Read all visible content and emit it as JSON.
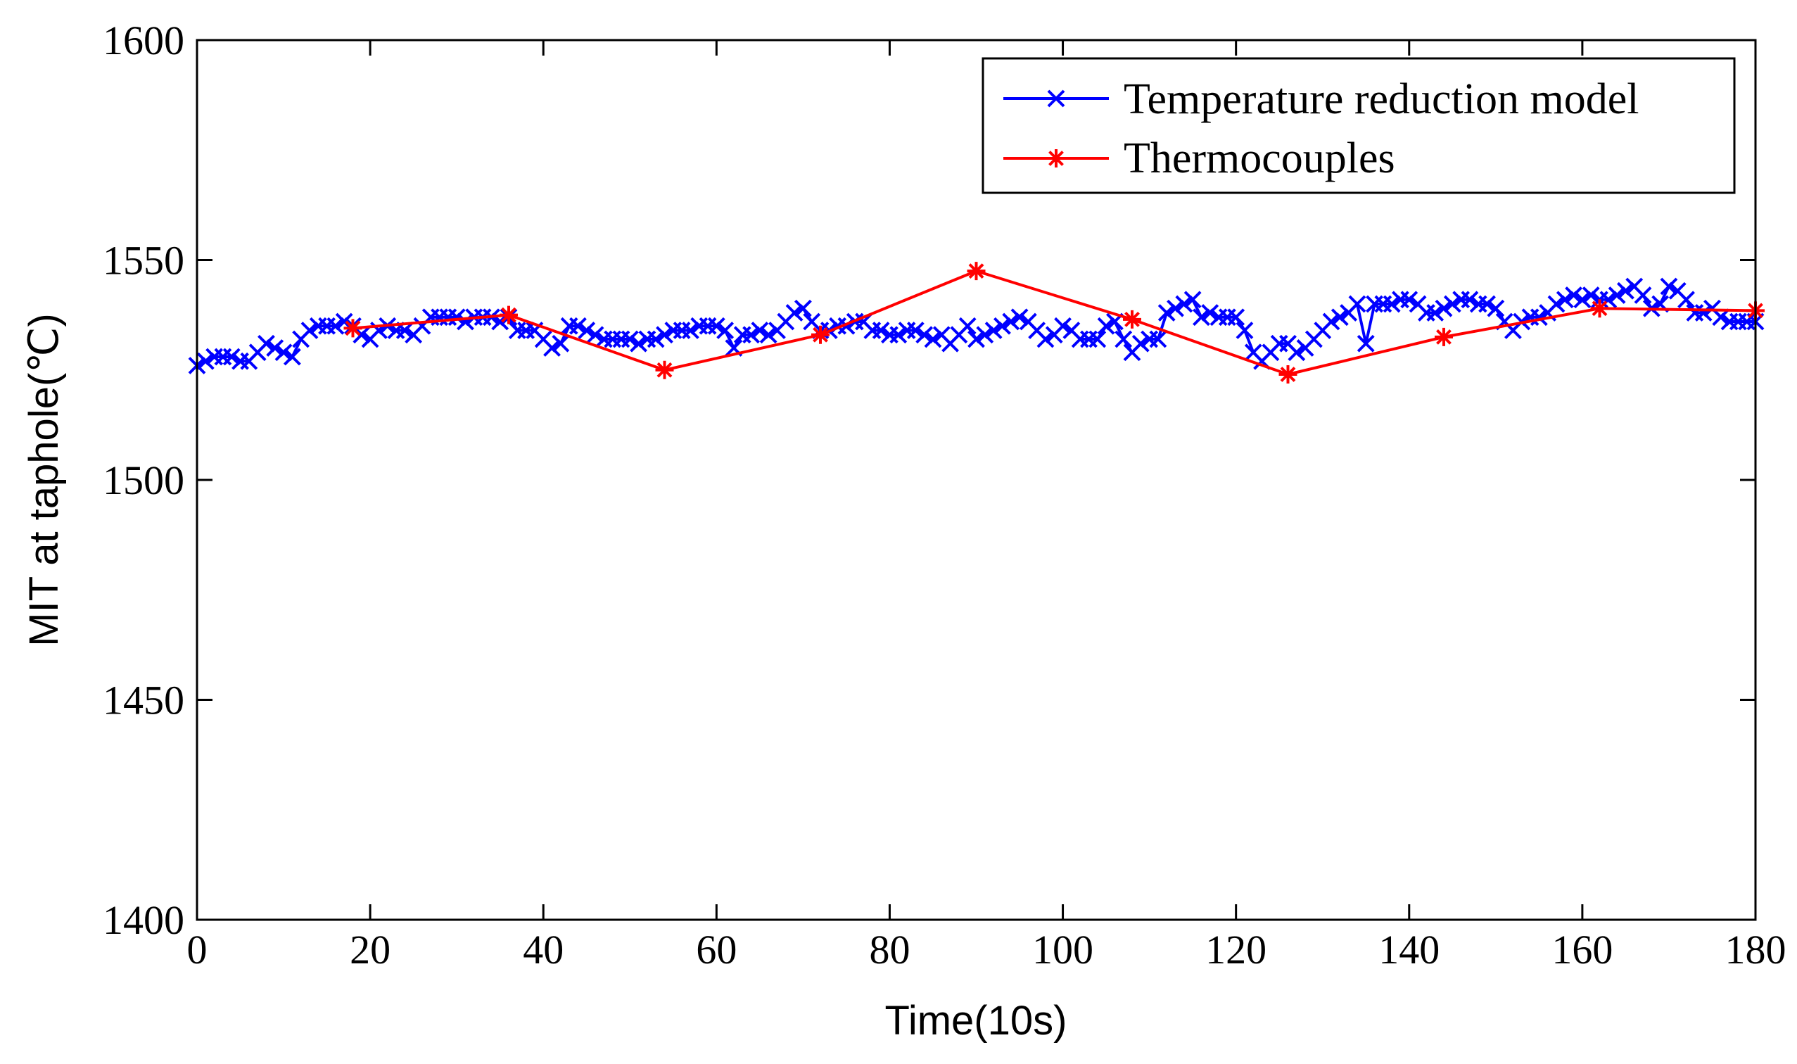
{
  "chart_data": {
    "type": "line",
    "title": "",
    "xlabel": "Time(10s)",
    "ylabel": "MIT at taphole(℃)",
    "xlim": [
      0,
      180
    ],
    "ylim": [
      1400,
      1600
    ],
    "xticks": [
      "0",
      "20",
      "40",
      "60",
      "80",
      "100",
      "120",
      "140",
      "160",
      "180"
    ],
    "yticks": [
      "1400",
      "1450",
      "1500",
      "1550",
      "1600"
    ],
    "grid": false,
    "legend_position": "top-right",
    "series": [
      {
        "name": "Temperature reduction model",
        "color": "#0000ff",
        "marker": "x",
        "x": [
          0,
          1,
          2,
          3,
          4,
          5,
          6,
          7,
          8,
          9,
          10,
          11,
          12,
          13,
          14,
          15,
          16,
          17,
          18,
          19,
          20,
          21,
          22,
          23,
          24,
          25,
          26,
          27,
          28,
          29,
          30,
          31,
          32,
          33,
          34,
          35,
          36,
          37,
          38,
          39,
          40,
          41,
          42,
          43,
          44,
          45,
          46,
          47,
          48,
          49,
          50,
          51,
          52,
          53,
          54,
          55,
          56,
          57,
          58,
          59,
          60,
          61,
          62,
          63,
          64,
          65,
          66,
          67,
          68,
          69,
          70,
          71,
          72,
          73,
          74,
          75,
          76,
          77,
          78,
          79,
          80,
          81,
          82,
          83,
          84,
          85,
          86,
          87,
          88,
          89,
          90,
          91,
          92,
          93,
          94,
          95,
          96,
          97,
          98,
          99,
          100,
          101,
          102,
          103,
          104,
          105,
          106,
          107,
          108,
          109,
          110,
          111,
          112,
          113,
          114,
          115,
          116,
          117,
          118,
          119,
          120,
          121,
          122,
          123,
          124,
          125,
          126,
          127,
          128,
          129,
          130,
          131,
          132,
          133,
          134,
          135,
          136,
          137,
          138,
          139,
          140,
          141,
          142,
          143,
          144,
          145,
          146,
          147,
          148,
          149,
          150,
          151,
          152,
          153,
          154,
          155,
          156,
          157,
          158,
          159,
          160,
          161,
          162,
          163,
          164,
          165,
          166,
          167,
          168,
          169,
          170,
          171,
          172,
          173,
          174,
          175,
          176,
          177,
          178,
          179,
          180
        ],
        "values": [
          1526,
          1527,
          1528,
          1528,
          1528,
          1527,
          1527,
          1529,
          1531,
          1530,
          1529,
          1528,
          1532,
          1534,
          1535,
          1535,
          1535,
          1536,
          1535,
          1533,
          1532,
          1534,
          1535,
          1534,
          1534,
          1533,
          1535,
          1537,
          1537,
          1537,
          1537,
          1536,
          1537,
          1537,
          1537,
          1536,
          1537,
          1534,
          1534,
          1534,
          1532,
          1530,
          1531,
          1535,
          1535,
          1534,
          1533,
          1532,
          1532,
          1532,
          1532,
          1531,
          1532,
          1532,
          1533,
          1534,
          1534,
          1534,
          1535,
          1535,
          1535,
          1534,
          1530,
          1533,
          1533,
          1534,
          1533,
          1534,
          1536,
          1538,
          1539,
          1536,
          1534,
          1534,
          1535,
          1535,
          1536,
          1536,
          1534,
          1534,
          1533,
          1533,
          1534,
          1534,
          1533,
          1532,
          1533,
          1531,
          1533,
          1535,
          1532,
          1533,
          1534,
          1535,
          1536,
          1537,
          1536,
          1534,
          1532,
          1533,
          1535,
          1534,
          1532,
          1532,
          1532,
          1535,
          1536,
          1532,
          1529,
          1531,
          1532,
          1532,
          1538,
          1539,
          1540,
          1541,
          1537,
          1538,
          1537,
          1537,
          1537,
          1534,
          1529,
          1527,
          1529,
          1531,
          1531,
          1529,
          1530,
          1532,
          1534,
          1536,
          1537,
          1538,
          1540,
          1531,
          1540,
          1540,
          1540,
          1541,
          1541,
          1540,
          1538,
          1538,
          1539,
          1540,
          1541,
          1541,
          1540,
          1540,
          1539,
          1536,
          1534,
          1536,
          1537,
          1537,
          1538,
          1540,
          1541,
          1542,
          1541,
          1542,
          1541,
          1541,
          1542,
          1543,
          1544,
          1542,
          1539,
          1540,
          1544,
          1543,
          1541,
          1538,
          1538,
          1539,
          1537,
          1536,
          1536,
          1536,
          1536
        ]
      },
      {
        "name": "Thermocouples",
        "color": "#ff0000",
        "marker": "*",
        "x": [
          18,
          36,
          54,
          72,
          90,
          108,
          126,
          144,
          162,
          180
        ],
        "values": [
          1534.5,
          1537.5,
          1525,
          1533,
          1547.5,
          1536.5,
          1524,
          1532.5,
          1539,
          1538.5
        ]
      }
    ]
  }
}
